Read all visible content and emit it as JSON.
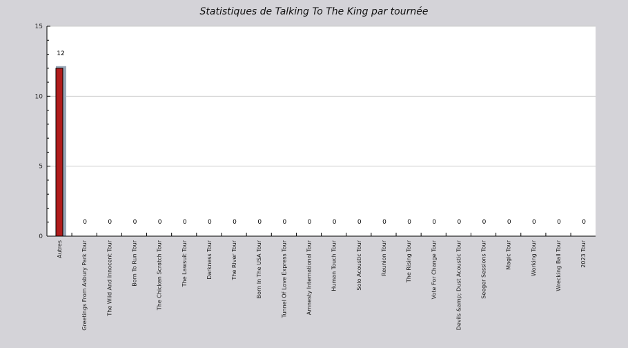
{
  "chart_data": {
    "type": "bar",
    "title": "Statistiques de Talking To The King par tournée",
    "xlabel": "",
    "ylabel": "",
    "ylim": [
      0,
      15
    ],
    "yticks": [
      0,
      5,
      10,
      15
    ],
    "grid": true,
    "legend": "none",
    "categories": [
      "Autres",
      "Greetings From Asbury Park Tour",
      "The Wild And Innocent Tour",
      "Born To Run Tour",
      "The Chicken Scratch Tour",
      "The Lawsuit Tour",
      "Darkness Tour",
      "The River Tour",
      "Born In The USA Tour",
      "Tunnel Of Love Express Tour",
      "Amnesty International Tour",
      "Human Touch Tour",
      "Solo Acoustic Tour",
      "Reunion Tour",
      "The Rising Tour",
      "Vote For Change Tour",
      "Devils &amp; Dust Acoustic Tour",
      "Seeger Sessions Tour",
      "Magic Tour",
      "Working Tour",
      "Wrecking Ball Tour",
      "2023 Tour"
    ],
    "values": [
      12,
      0,
      0,
      0,
      0,
      0,
      0,
      0,
      0,
      0,
      0,
      0,
      0,
      0,
      0,
      0,
      0,
      0,
      0,
      0,
      0,
      0
    ],
    "colors": {
      "bar": "#b01c1c",
      "bar_shadow": "#9aa8b8",
      "plot_bg": "#ffffff",
      "page_bg": "#d4d3d8",
      "grid": "#cccccc"
    }
  }
}
